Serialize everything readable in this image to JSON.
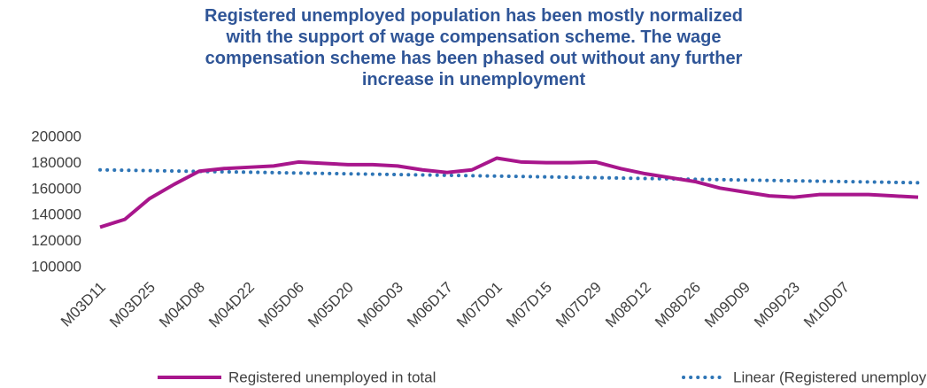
{
  "chart_data": {
    "type": "line",
    "title": "Registered unemployed population has been mostly normalized with the support of wage compensation scheme. The wage compensation scheme has been phased out without any further increase in unemployment",
    "categories": [
      "M03D11",
      null,
      "M03D25",
      null,
      "M04D08",
      null,
      "M04D22",
      null,
      "M05D06",
      null,
      "M05D20",
      null,
      "M06D03",
      null,
      "M06D17",
      null,
      "M07D01",
      null,
      "M07D15",
      null,
      "M07D29",
      null,
      "M08D12",
      null,
      "M08D26",
      null,
      "M09D09",
      null,
      "M09D23",
      null,
      "M10D07",
      null,
      null,
      null
    ],
    "series": [
      {
        "name": "Registered unemployed in total",
        "color": "#a8168c",
        "style": "solid",
        "values": [
          131000,
          137000,
          153000,
          164000,
          174000,
          176000,
          177000,
          178000,
          181000,
          180000,
          179000,
          179000,
          178000,
          175000,
          173000,
          175000,
          184000,
          181000,
          180500,
          180500,
          181000,
          176000,
          172000,
          169000,
          166000,
          161000,
          158000,
          155000,
          154000,
          156000,
          156000,
          156000,
          155000,
          154000
        ]
      },
      {
        "name": "Linear (Registered unemployed in total)",
        "color": "#2e75b6",
        "style": "dotted",
        "values": [
          175000,
          174700,
          174400,
          174100,
          173800,
          173500,
          173200,
          172900,
          172600,
          172300,
          172000,
          171700,
          171400,
          171100,
          170800,
          170500,
          170200,
          169900,
          169600,
          169300,
          169000,
          168700,
          168400,
          168100,
          167800,
          167500,
          167200,
          166900,
          166600,
          166300,
          166000,
          165700,
          165400,
          165100
        ]
      }
    ],
    "ylim": [
      100000,
      200000
    ],
    "yticks": [
      100000,
      120000,
      140000,
      160000,
      180000,
      200000
    ],
    "grid": false
  }
}
